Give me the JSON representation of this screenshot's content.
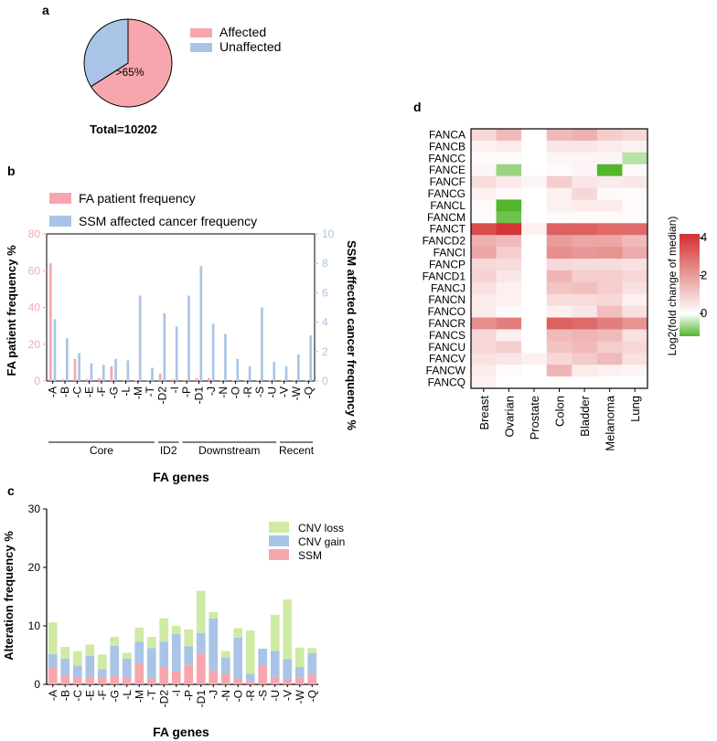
{
  "panel_labels": {
    "a": "a",
    "b": "b",
    "c": "c",
    "d": "d"
  },
  "colors": {
    "affected": "#f7a6ad",
    "unaffected": "#a9c4e6",
    "fa_patient": "#f7a6ad",
    "ssm_cancer": "#a9c4e6",
    "cnv_loss": "#cfeaa3",
    "cnv_gain": "#a9c4e6",
    "ssm": "#f7a6ad",
    "heat_high": "#d32f2f",
    "heat_mid": "#ffffff",
    "heat_low": "#52b62a"
  },
  "chart_data": [
    {
      "type": "pie",
      "panel": "a",
      "slices": [
        {
          "label": "Affected",
          "value": 66
        },
        {
          "label": "Unaffected",
          "value": 34
        }
      ],
      "slice_label": ">65%",
      "total_label": "Total=10202"
    },
    {
      "type": "bar",
      "panel": "b",
      "categories": [
        "A",
        "B",
        "C",
        "E",
        "F",
        "G",
        "L",
        "M",
        "T",
        "D2",
        "I",
        "P",
        "D1",
        "J",
        "N",
        "O",
        "R",
        "S",
        "U",
        "V",
        "W",
        "Q"
      ],
      "category_prefix": "-",
      "series": [
        {
          "name": "FA patient frequency",
          "axis": "left",
          "values": [
            64,
            1,
            12,
            1,
            1.5,
            8,
            0.5,
            0.3,
            0.3,
            4,
            1,
            0.5,
            1.5,
            1.5,
            0.3,
            0.3,
            0.3,
            0.3,
            0.3,
            0.3,
            0.3,
            0.3
          ]
        },
        {
          "name": "SSM affected cancer frequency",
          "axis": "right",
          "values": [
            4.2,
            2.9,
            1.9,
            1.2,
            1.1,
            1.5,
            1.4,
            5.8,
            0.9,
            4.6,
            3.7,
            5.8,
            7.8,
            3.9,
            3.2,
            1.5,
            1.0,
            5.0,
            1.3,
            1.0,
            1.8,
            3.1
          ]
        }
      ],
      "ylabel_left": "FA patient frequency %",
      "ylabel_right": "SSM affected cancer frequency %",
      "ylim_left": [
        0,
        80
      ],
      "ylim_right": [
        0,
        10
      ],
      "yticks_left": [
        "0",
        "20",
        "40",
        "60",
        "80"
      ],
      "yticks_right": [
        "0",
        "2",
        "4",
        "6",
        "8",
        "10"
      ],
      "xlabel": "FA genes",
      "groups": [
        {
          "label": "Core",
          "from": 0,
          "to": 8
        },
        {
          "label": "ID2",
          "from": 9,
          "to": 10
        },
        {
          "label": "Downstream",
          "from": 11,
          "to": 18
        },
        {
          "label": "Recent",
          "from": 19,
          "to": 21
        }
      ]
    },
    {
      "type": "bar",
      "stacked": true,
      "panel": "c",
      "categories": [
        "A",
        "B",
        "C",
        "E",
        "F",
        "G",
        "L",
        "M",
        "T",
        "D2",
        "I",
        "P",
        "D1",
        "J",
        "N",
        "O",
        "R",
        "S",
        "U",
        "V",
        "W",
        "Q"
      ],
      "category_prefix": "-",
      "series": [
        {
          "name": "SSM",
          "values": [
            2.8,
            1.6,
            1.2,
            1.3,
            1.2,
            1.4,
            1.2,
            3.6,
            1.0,
            2.9,
            2.2,
            3.4,
            5.2,
            2.4,
            1.8,
            1.0,
            0.5,
            3.3,
            1.3,
            0.9,
            1.2,
            1.7
          ]
        },
        {
          "name": "CNV gain",
          "values": [
            2.4,
            2.8,
            2.0,
            3.6,
            1.4,
            5.2,
            3.2,
            3.7,
            5.2,
            4.4,
            6.4,
            3.1,
            3.6,
            8.9,
            2.8,
            7.0,
            1.3,
            2.8,
            4.4,
            3.4,
            1.8,
            3.6
          ]
        },
        {
          "name": "CNV loss",
          "values": [
            5.4,
            2.0,
            2.5,
            1.9,
            2.5,
            1.5,
            1.0,
            2.4,
            1.9,
            4.0,
            1.4,
            2.9,
            7.2,
            1.1,
            1.1,
            1.6,
            7.4,
            0.0,
            6.2,
            10.2,
            3.3,
            0.9
          ]
        }
      ],
      "legend": [
        "CNV loss",
        "CNV gain",
        "SSM"
      ],
      "ylabel": "Alteration frequency %",
      "xlabel": "FA genes",
      "ylim": [
        0,
        30
      ],
      "yticks": [
        "0",
        "10",
        "20",
        "30"
      ]
    },
    {
      "type": "heatmap",
      "panel": "d",
      "rows": [
        "FANCA",
        "FANCB",
        "FANCC",
        "FANCE",
        "FANCF",
        "FANCG",
        "FANCL",
        "FANCM",
        "FANCT",
        "FANCD2",
        "FANCI",
        "FANCP",
        "FANCD1",
        "FANCJ",
        "FANCN",
        "FANCO",
        "FANCR",
        "FANCS",
        "FANCU",
        "FANCV",
        "FANCW",
        "FANCQ"
      ],
      "columns": [
        "Breast",
        "Ovarian",
        "Prostate",
        "Colon",
        "Bladder",
        "Melanoma",
        "Lung"
      ],
      "values": [
        [
          0.8,
          1.4,
          0,
          1.4,
          1.6,
          1.0,
          0.8
        ],
        [
          0.3,
          0.4,
          0,
          0.5,
          0.5,
          0.4,
          0.3
        ],
        [
          0.1,
          0.1,
          0,
          0.2,
          0.2,
          0.2,
          -0.5
        ],
        [
          0.2,
          -0.7,
          0,
          0.1,
          0.2,
          -1.3,
          0.1
        ],
        [
          0.7,
          0.4,
          0.2,
          1.0,
          0.5,
          0.4,
          0.5
        ],
        [
          0.3,
          0.1,
          0,
          0.3,
          0.8,
          0.1,
          0.1
        ],
        [
          0.1,
          -1.3,
          0,
          0.3,
          0.4,
          0.4,
          0.1
        ],
        [
          0.1,
          -1.0,
          0,
          0.1,
          0.1,
          0.1,
          0.1
        ],
        [
          3.6,
          4.1,
          0.3,
          3.2,
          3.2,
          3.0,
          3.0
        ],
        [
          1.6,
          1.4,
          0,
          2.0,
          1.8,
          1.8,
          1.4
        ],
        [
          1.8,
          1.0,
          0,
          2.3,
          2.1,
          2.2,
          1.7
        ],
        [
          0.8,
          0.7,
          0,
          0.8,
          0.7,
          0.7,
          0.6
        ],
        [
          0.9,
          0.5,
          0,
          1.5,
          1.0,
          1.0,
          0.8
        ],
        [
          0.6,
          0.3,
          0,
          1.2,
          1.3,
          1.0,
          0.6
        ],
        [
          0.4,
          0.3,
          0,
          0.7,
          0.7,
          0.8,
          0.3
        ],
        [
          0.4,
          0.1,
          0,
          0.3,
          0.5,
          1.3,
          0.6
        ],
        [
          2.3,
          2.6,
          0,
          3.2,
          3.0,
          2.6,
          2.2
        ],
        [
          0.8,
          0.3,
          0,
          1.4,
          1.5,
          1.4,
          0.6
        ],
        [
          0.8,
          1.0,
          0,
          1.2,
          1.4,
          1.0,
          0.8
        ],
        [
          0.6,
          0.5,
          0.3,
          0.8,
          1.1,
          1.4,
          0.6
        ],
        [
          0.4,
          0.1,
          0,
          1.5,
          0.4,
          0.3,
          0.2
        ],
        [
          0.3,
          0,
          0,
          0,
          0,
          0,
          0
        ]
      ],
      "colorbar_label": "Log2(fold change of median)",
      "colorbar_ticks": [
        "4",
        "2",
        "0"
      ],
      "vmin": -1.2,
      "vmax": 4.2
    }
  ]
}
